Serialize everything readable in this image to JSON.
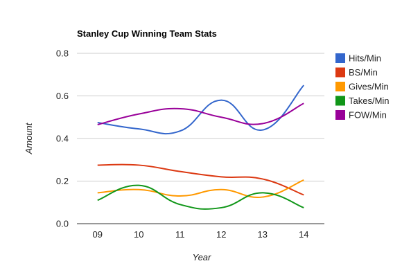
{
  "chart_data": {
    "type": "line",
    "title": "Stanley Cup Winning Team Stats",
    "xlabel": "Year",
    "ylabel": "Amount",
    "categories": [
      "09",
      "10",
      "11",
      "12",
      "13",
      "14"
    ],
    "y_ticks": [
      "0.0",
      "0.2",
      "0.4",
      "0.6",
      "0.8"
    ],
    "ylim": [
      0,
      0.8
    ],
    "grid": true,
    "smooth": true,
    "legend_position": "right",
    "series": [
      {
        "name": "Hits/Min",
        "color": "#3366cc",
        "values": [
          0.475,
          0.445,
          0.435,
          0.58,
          0.44,
          0.65
        ]
      },
      {
        "name": "BS/Min",
        "color": "#dc3912",
        "values": [
          0.275,
          0.275,
          0.245,
          0.22,
          0.21,
          0.135
        ]
      },
      {
        "name": "Gives/Min",
        "color": "#ff9900",
        "values": [
          0.145,
          0.16,
          0.13,
          0.16,
          0.125,
          0.205
        ]
      },
      {
        "name": "Takes/Min",
        "color": "#109618",
        "values": [
          0.11,
          0.18,
          0.09,
          0.075,
          0.145,
          0.075
        ]
      },
      {
        "name": "FOW/Min",
        "color": "#990099",
        "values": [
          0.465,
          0.515,
          0.54,
          0.5,
          0.47,
          0.565
        ]
      }
    ]
  }
}
